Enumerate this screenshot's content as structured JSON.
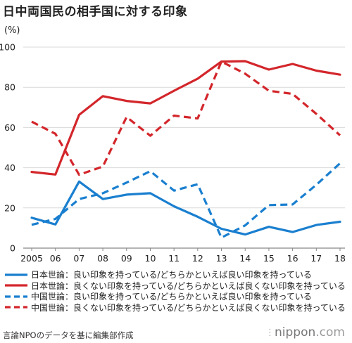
{
  "title": "日中両国民の相手国に対する印象",
  "y_unit": "(%)",
  "source": "言論NPOのデータを基に編集部作成",
  "brand": {
    "name": "nippon",
    "tld": ".com"
  },
  "chart_data": {
    "type": "line",
    "title": "日中両国民の相手国に対する印象",
    "xlabel": "",
    "ylabel": "(%)",
    "ylim": [
      0,
      100
    ],
    "yticks": [
      0,
      20,
      40,
      60,
      80,
      100
    ],
    "grid": "horizontal",
    "legend_position": "bottom",
    "x": [
      "2005",
      "06",
      "07",
      "08",
      "09",
      "10",
      "11",
      "12",
      "13",
      "14",
      "15",
      "16",
      "17",
      "18"
    ],
    "series": [
      {
        "name": "日本世論：良い印象を持っている/どちらかといえば良い印象を持っている",
        "color": "#1a7fcf",
        "style": "solid",
        "values": [
          15.1,
          11.8,
          33.1,
          24.4,
          26.6,
          27.3,
          20.8,
          15.6,
          9.6,
          6.8,
          10.6,
          8.0,
          11.5,
          13.1
        ]
      },
      {
        "name": "日本世論：良くない印象を持っている/どちらかといえば良くない印象を持っている",
        "color": "#d3262b",
        "style": "solid",
        "values": [
          37.9,
          36.6,
          66.3,
          75.6,
          73.2,
          72.0,
          78.3,
          84.3,
          92.8,
          93.0,
          88.8,
          91.6,
          88.3,
          86.3
        ]
      },
      {
        "name": "中国世論：良い印象を持っている/どちらかといえば良い印象を持っている",
        "color": "#1a7fcf",
        "style": "dashed",
        "values": [
          11.6,
          14.5,
          24.4,
          27.3,
          32.6,
          38.3,
          28.6,
          31.8,
          5.2,
          11.3,
          21.4,
          21.7,
          31.5,
          42.2
        ]
      },
      {
        "name": "中国世論：良くない印象を持っている/どちらかといえば良くない印象を持っている",
        "color": "#d3262b",
        "style": "dashed",
        "values": [
          62.9,
          56.9,
          36.5,
          40.6,
          65.2,
          55.9,
          65.9,
          64.5,
          92.8,
          86.8,
          78.3,
          76.7,
          66.8,
          56.1
        ]
      }
    ]
  }
}
